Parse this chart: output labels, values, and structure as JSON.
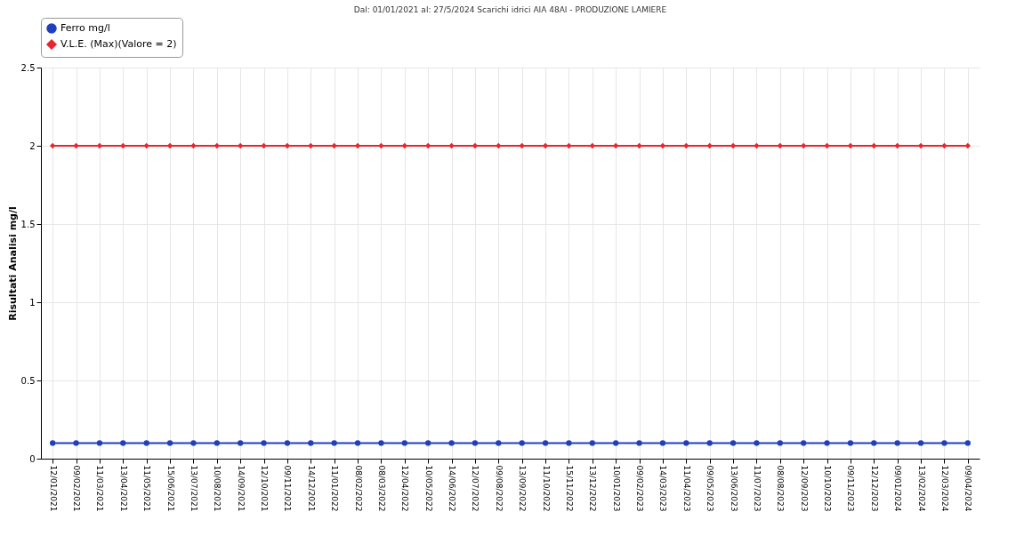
{
  "chart_data": {
    "type": "line",
    "title": "Dal: 01/01/2021 al: 27/5/2024 Scarichi idrici AIA 48AI - PRODUZIONE LAMIERE",
    "ylabel": "Risultati Analisi mg/l",
    "categories": [
      "12/01/2021",
      "09/02/2021",
      "11/03/2021",
      "13/04/2021",
      "11/05/2021",
      "15/06/2021",
      "13/07/2021",
      "10/08/2021",
      "14/09/2021",
      "12/10/2021",
      "09/11/2021",
      "14/12/2021",
      "11/01/2022",
      "08/02/2022",
      "08/03/2022",
      "12/04/2022",
      "10/05/2022",
      "14/06/2022",
      "12/07/2022",
      "09/08/2022",
      "13/09/2022",
      "11/10/2022",
      "15/11/2022",
      "13/12/2022",
      "10/01/2023",
      "09/02/2023",
      "14/03/2023",
      "11/04/2023",
      "09/05/2023",
      "13/06/2023",
      "11/07/2023",
      "08/08/2023",
      "12/09/2023",
      "10/10/2023",
      "09/11/2023",
      "12/12/2023",
      "09/01/2024",
      "13/02/2024",
      "12/03/2024",
      "09/04/2024"
    ],
    "series": [
      {
        "name": "Ferro mg/l",
        "color": "#1f3fbf",
        "marker": "circle",
        "values": [
          0.1,
          0.1,
          0.1,
          0.1,
          0.1,
          0.1,
          0.1,
          0.1,
          0.1,
          0.1,
          0.1,
          0.1,
          0.1,
          0.1,
          0.1,
          0.1,
          0.1,
          0.1,
          0.1,
          0.1,
          0.1,
          0.1,
          0.1,
          0.1,
          0.1,
          0.1,
          0.1,
          0.1,
          0.1,
          0.1,
          0.1,
          0.1,
          0.1,
          0.1,
          0.1,
          0.1,
          0.1,
          0.1,
          0.1,
          0.1
        ]
      },
      {
        "name": "V.L.E. (Max)(Valore = 2)",
        "color": "#e8262e",
        "marker": "diamond",
        "values": [
          2,
          2,
          2,
          2,
          2,
          2,
          2,
          2,
          2,
          2,
          2,
          2,
          2,
          2,
          2,
          2,
          2,
          2,
          2,
          2,
          2,
          2,
          2,
          2,
          2,
          2,
          2,
          2,
          2,
          2,
          2,
          2,
          2,
          2,
          2,
          2,
          2,
          2,
          2,
          2
        ]
      }
    ],
    "ylim": [
      0,
      2.5
    ],
    "yticks": [
      0,
      0.5,
      1,
      1.5,
      2,
      2.5
    ],
    "grid": true,
    "legend": "top",
    "line_style": "solid"
  }
}
